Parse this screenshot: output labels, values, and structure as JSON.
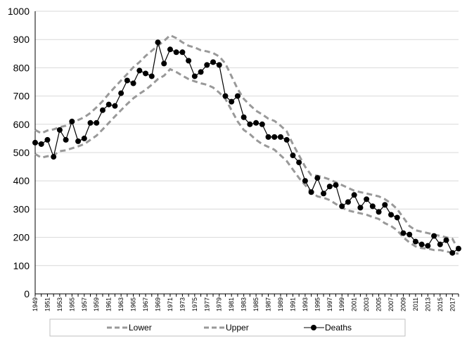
{
  "chart_data": {
    "type": "line",
    "ylim": [
      0,
      1000
    ],
    "yticks": [
      "0",
      "100",
      "200",
      "300",
      "400",
      "500",
      "600",
      "700",
      "800",
      "900",
      "1000"
    ],
    "grid": "horizontal",
    "legend_position": "bottom",
    "colors": {
      "band": "#999999",
      "deaths": "#000000",
      "grid": "#d9d9d9"
    },
    "x": [
      1949,
      1950,
      1951,
      1952,
      1953,
      1954,
      1955,
      1956,
      1957,
      1958,
      1959,
      1960,
      1961,
      1962,
      1963,
      1964,
      1965,
      1966,
      1967,
      1968,
      1969,
      1970,
      1971,
      1972,
      1973,
      1974,
      1975,
      1976,
      1977,
      1978,
      1979,
      1980,
      1981,
      1982,
      1983,
      1984,
      1985,
      1986,
      1987,
      1988,
      1989,
      1990,
      1991,
      1992,
      1993,
      1994,
      1995,
      1996,
      1997,
      1998,
      1999,
      2000,
      2001,
      2002,
      2003,
      2004,
      2005,
      2006,
      2007,
      2008,
      2009,
      2010,
      2011,
      2012,
      2013,
      2014,
      2015,
      2016,
      2017,
      2018
    ],
    "xticks": [
      "1949",
      "1951",
      "1953",
      "1955",
      "1957",
      "1959",
      "1961",
      "1963",
      "1965",
      "1967",
      "1969",
      "1971",
      "1973",
      "1975",
      "1977",
      "1979",
      "1981",
      "1983",
      "1985",
      "1987",
      "1989",
      "1991",
      "1993",
      "1995",
      "1997",
      "1999",
      "2001",
      "2003",
      "2005",
      "2007",
      "2009",
      "2011",
      "2013",
      "2015",
      "2017"
    ],
    "series": [
      {
        "name": "Lower",
        "style": "dashed",
        "values": [
          495,
          482,
          487,
          490,
          505,
          508,
          515,
          522,
          530,
          545,
          560,
          582,
          605,
          628,
          650,
          672,
          692,
          708,
          722,
          740,
          760,
          772,
          795,
          785,
          772,
          760,
          752,
          745,
          740,
          730,
          712,
          690,
          650,
          610,
          580,
          565,
          545,
          530,
          520,
          510,
          490,
          470,
          440,
          410,
          385,
          360,
          345,
          340,
          332,
          318,
          305,
          295,
          290,
          285,
          280,
          272,
          265,
          250,
          240,
          225,
          200,
          182,
          168,
          162,
          160,
          155,
          155,
          150,
          145,
          142
        ]
      },
      {
        "name": "Upper",
        "style": "dashed",
        "values": [
          580,
          568,
          578,
          582,
          590,
          595,
          605,
          615,
          625,
          640,
          660,
          682,
          708,
          732,
          755,
          778,
          802,
          820,
          842,
          860,
          878,
          895,
          915,
          905,
          890,
          878,
          872,
          862,
          858,
          852,
          840,
          815,
          770,
          725,
          690,
          668,
          648,
          635,
          620,
          612,
          595,
          575,
          530,
          490,
          450,
          420,
          418,
          412,
          405,
          395,
          385,
          375,
          365,
          360,
          355,
          350,
          345,
          335,
          320,
          300,
          270,
          240,
          225,
          220,
          215,
          210,
          205,
          200,
          195,
          155
        ]
      },
      {
        "name": "Deaths",
        "style": "solid-markers",
        "values": [
          535,
          530,
          545,
          485,
          580,
          545,
          610,
          540,
          550,
          605,
          605,
          650,
          670,
          665,
          710,
          755,
          745,
          790,
          780,
          770,
          890,
          815,
          865,
          855,
          855,
          825,
          770,
          785,
          810,
          820,
          810,
          700,
          680,
          700,
          625,
          600,
          605,
          600,
          555,
          555,
          555,
          545,
          490,
          465,
          400,
          360,
          410,
          355,
          380,
          385,
          310,
          325,
          350,
          305,
          335,
          310,
          290,
          315,
          280,
          270,
          215,
          210,
          185,
          175,
          170,
          205,
          175,
          190,
          145,
          160
        ]
      }
    ],
    "legend": [
      "Lower",
      "Upper",
      "Deaths"
    ]
  }
}
